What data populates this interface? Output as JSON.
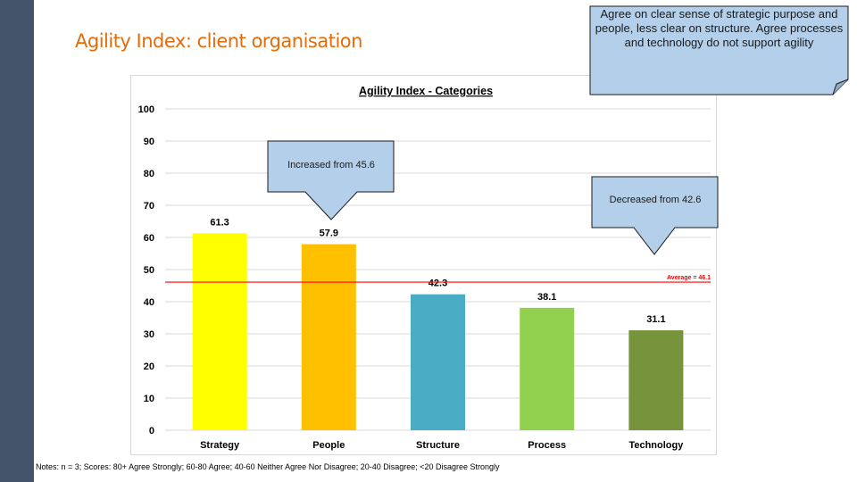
{
  "slide": {
    "title": "Agility Index: client organisation",
    "notes": "Notes:    n = 3; Scores: 80+ Agree Strongly; 60-80 Agree; 40-60 Neither Agree Nor Disagree; 20-40 Disagree; <20 Disagree Strongly"
  },
  "callouts": {
    "summary": "Agree on clear sense of strategic purpose and people, less clear on structure.  Agree processes and technology do not support agility",
    "people": "Increased from 45.6",
    "technology": "Decreased from 42.6"
  },
  "chart_data": {
    "type": "bar",
    "title": "Agility Index - Categories",
    "categories": [
      "Strategy",
      "People",
      "Structure",
      "Process",
      "Technology"
    ],
    "values": [
      61.3,
      57.9,
      42.3,
      38.1,
      31.1
    ],
    "value_labels": [
      "61.3",
      "57.9",
      "42.3",
      "38.1",
      "31.1"
    ],
    "bar_colors": [
      "#ffff00",
      "#ffc000",
      "#4bacc6",
      "#92d050",
      "#77933c"
    ],
    "ylim": [
      0,
      100
    ],
    "yticks": [
      "0",
      "10",
      "20",
      "30",
      "40",
      "50",
      "60",
      "70",
      "80",
      "90",
      "100"
    ],
    "grid": true,
    "reference_line": {
      "value": 46.1,
      "label": "Average = 46.1",
      "color": "#ff0000"
    }
  },
  "colors": {
    "accent": "#e46c0a",
    "sidebar": "#44546a",
    "callout_fill": "#b4cfe9",
    "callout_stroke": "#1a1a1a"
  }
}
